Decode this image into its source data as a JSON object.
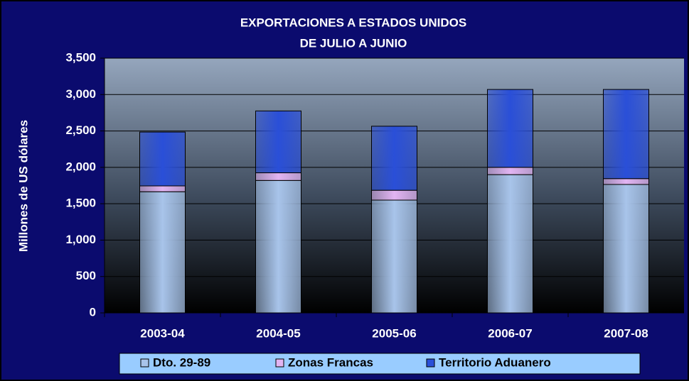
{
  "chart_data": {
    "type": "stacked_bar",
    "title": "EXPORTACIONES A ESTADOS UNIDOS",
    "subtitle": "DE JULIO A JUNIO",
    "y_label": "Millones de US dólares",
    "categories": [
      "2003-04",
      "2004-05",
      "2005-06",
      "2006-07",
      "2007-08"
    ],
    "series": [
      {
        "name": "Dto. 29-89",
        "color": "#a8c4ea",
        "values": [
          1665,
          1820,
          1550,
          1900,
          1765
        ]
      },
      {
        "name": "Zonas Francas",
        "color": "#e2b4f2",
        "values": [
          80,
          105,
          135,
          100,
          80
        ]
      },
      {
        "name": "Territorio Aduanero",
        "color": "#2a4fd8",
        "values": [
          740,
          850,
          880,
          1070,
          1225
        ]
      }
    ],
    "ylim": [
      0,
      3500
    ],
    "yticks": [
      0,
      500,
      {
        "value": 1000,
        "label": "1,000"
      },
      {
        "value": 1500,
        "label": "1,500"
      },
      {
        "value": 2000,
        "label": "2,000"
      },
      {
        "value": 2500,
        "label": "2,500"
      },
      {
        "value": 3000,
        "label": "3,000"
      },
      {
        "value": 3500,
        "label": "3,500"
      }
    ],
    "grid": true,
    "legend": "bottom"
  }
}
